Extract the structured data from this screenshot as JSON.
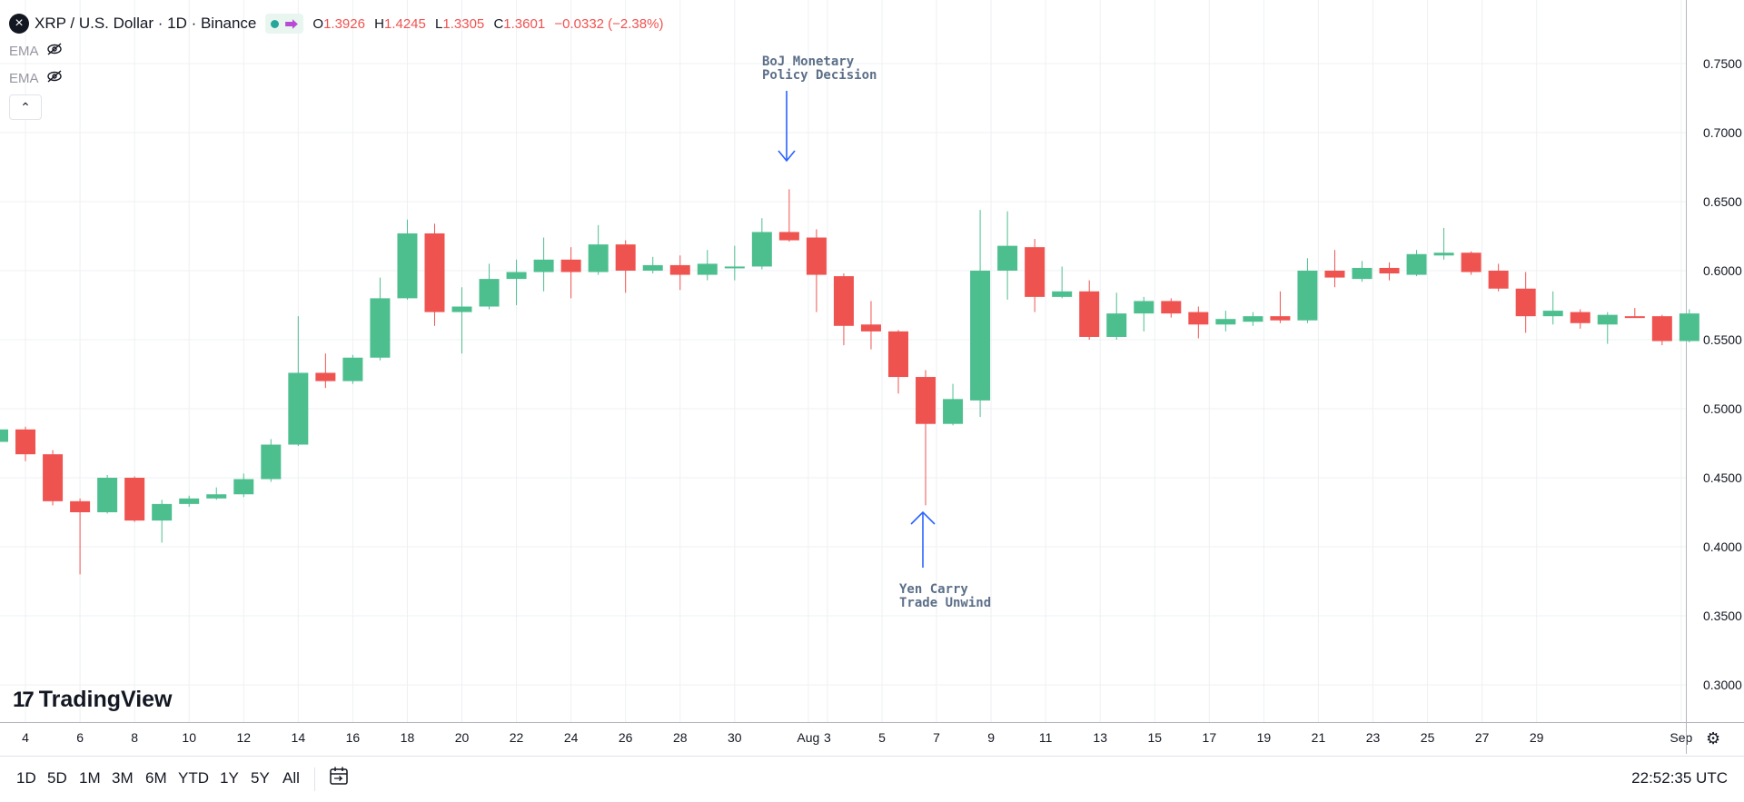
{
  "header": {
    "symbol_title": "XRP / U.S. Dollar · 1D · Binance",
    "symbol_icon": "x-close-icon",
    "ohlc": {
      "o_label": "O",
      "o_value": "1.3926",
      "h_label": "H",
      "h_value": "1.4245",
      "l_label": "L",
      "l_value": "1.3305",
      "c_label": "C",
      "c_value": "1.3601",
      "change": "−0.0332 (−2.38%)"
    },
    "indicators": [
      {
        "label": "EMA",
        "icon": "eye-off-icon"
      },
      {
        "label": "EMA",
        "icon": "eye-off-icon"
      }
    ],
    "collapse_icon": "chevron-up-icon"
  },
  "branding": {
    "name": "TradingView"
  },
  "annotations": [
    {
      "line1": "BoJ Monetary",
      "line2": "Policy Decision",
      "arrow": "down",
      "target_date": "Jul 31"
    },
    {
      "line1": "Yen Carry",
      "line2": "Trade Unwind",
      "arrow": "up",
      "target_date": "Aug 5"
    }
  ],
  "bottom_bar": {
    "ranges": [
      "1D",
      "5D",
      "1M",
      "3M",
      "6M",
      "YTD",
      "1Y",
      "5Y",
      "All"
    ],
    "time": "22:52:35 UTC"
  },
  "colors": {
    "up": "#26a69a",
    "up_fill": "#4dbf8f",
    "down": "#ef5350",
    "grid": "#eef0f3",
    "annotation": "#2962ff"
  },
  "chart_data": {
    "type": "candlestick",
    "title": "XRP / U.S. Dollar · 1D · Binance",
    "ylim": [
      0.27,
      0.77
    ],
    "y_ticks": [
      0.3,
      0.35,
      0.4,
      0.45,
      0.5,
      0.55,
      0.6,
      0.65,
      0.7,
      0.75
    ],
    "y_tick_labels": [
      "0.3000",
      "0.3500",
      "0.4000",
      "0.4500",
      "0.5000",
      "0.5500",
      "0.6000",
      "0.6500",
      "0.7000",
      "0.7500"
    ],
    "x_tick_labels": [
      "4",
      "6",
      "8",
      "10",
      "12",
      "14",
      "16",
      "18",
      "20",
      "22",
      "24",
      "26",
      "28",
      "30",
      "Aug",
      "3",
      "5",
      "7",
      "9",
      "11",
      "13",
      "15",
      "17",
      "19",
      "21",
      "23",
      "25",
      "27",
      "29",
      "Sep"
    ],
    "grid": true,
    "candles": [
      {
        "date": "Jul 3",
        "open": 0.476,
        "high": 0.486,
        "low": 0.474,
        "close": 0.485
      },
      {
        "date": "Jul 4",
        "open": 0.485,
        "high": 0.487,
        "low": 0.462,
        "close": 0.467
      },
      {
        "date": "Jul 5",
        "open": 0.467,
        "high": 0.47,
        "low": 0.43,
        "close": 0.433
      },
      {
        "date": "Jul 6",
        "open": 0.433,
        "high": 0.435,
        "low": 0.38,
        "close": 0.425
      },
      {
        "date": "Jul 7",
        "open": 0.425,
        "high": 0.452,
        "low": 0.424,
        "close": 0.45
      },
      {
        "date": "Jul 8",
        "open": 0.45,
        "high": 0.451,
        "low": 0.418,
        "close": 0.419
      },
      {
        "date": "Jul 9",
        "open": 0.419,
        "high": 0.434,
        "low": 0.403,
        "close": 0.431
      },
      {
        "date": "Jul 10",
        "open": 0.431,
        "high": 0.437,
        "low": 0.429,
        "close": 0.435
      },
      {
        "date": "Jul 11",
        "open": 0.435,
        "high": 0.443,
        "low": 0.434,
        "close": 0.438
      },
      {
        "date": "Jul 12",
        "open": 0.438,
        "high": 0.453,
        "low": 0.436,
        "close": 0.449
      },
      {
        "date": "Jul 13",
        "open": 0.449,
        "high": 0.478,
        "low": 0.447,
        "close": 0.474
      },
      {
        "date": "Jul 14",
        "open": 0.474,
        "high": 0.567,
        "low": 0.473,
        "close": 0.526
      },
      {
        "date": "Jul 15",
        "open": 0.526,
        "high": 0.54,
        "low": 0.515,
        "close": 0.52
      },
      {
        "date": "Jul 16",
        "open": 0.52,
        "high": 0.539,
        "low": 0.518,
        "close": 0.537
      },
      {
        "date": "Jul 17",
        "open": 0.537,
        "high": 0.595,
        "low": 0.535,
        "close": 0.58
      },
      {
        "date": "Jul 18",
        "open": 0.58,
        "high": 0.637,
        "low": 0.579,
        "close": 0.627
      },
      {
        "date": "Jul 19",
        "open": 0.627,
        "high": 0.634,
        "low": 0.56,
        "close": 0.57
      },
      {
        "date": "Jul 20",
        "open": 0.57,
        "high": 0.588,
        "low": 0.54,
        "close": 0.574
      },
      {
        "date": "Jul 21",
        "open": 0.574,
        "high": 0.605,
        "low": 0.572,
        "close": 0.594
      },
      {
        "date": "Jul 22",
        "open": 0.594,
        "high": 0.608,
        "low": 0.575,
        "close": 0.599
      },
      {
        "date": "Jul 23",
        "open": 0.599,
        "high": 0.624,
        "low": 0.585,
        "close": 0.608
      },
      {
        "date": "Jul 24",
        "open": 0.608,
        "high": 0.617,
        "low": 0.58,
        "close": 0.599
      },
      {
        "date": "Jul 25",
        "open": 0.599,
        "high": 0.633,
        "low": 0.597,
        "close": 0.619
      },
      {
        "date": "Jul 26",
        "open": 0.619,
        "high": 0.622,
        "low": 0.584,
        "close": 0.6
      },
      {
        "date": "Jul 27",
        "open": 0.6,
        "high": 0.61,
        "low": 0.598,
        "close": 0.604
      },
      {
        "date": "Jul 28",
        "open": 0.604,
        "high": 0.611,
        "low": 0.586,
        "close": 0.597
      },
      {
        "date": "Jul 29",
        "open": 0.597,
        "high": 0.615,
        "low": 0.593,
        "close": 0.605
      },
      {
        "date": "Jul 30",
        "open": 0.602,
        "high": 0.618,
        "low": 0.593,
        "close": 0.603
      },
      {
        "date": "Jul 31",
        "open": 0.603,
        "high": 0.638,
        "low": 0.601,
        "close": 0.628
      },
      {
        "date": "Aug 1",
        "open": 0.628,
        "high": 0.659,
        "low": 0.621,
        "close": 0.622
      },
      {
        "date": "Aug 2",
        "open": 0.624,
        "high": 0.63,
        "low": 0.57,
        "close": 0.597
      },
      {
        "date": "Aug 3",
        "open": 0.596,
        "high": 0.598,
        "low": 0.546,
        "close": 0.56
      },
      {
        "date": "Aug 4",
        "open": 0.561,
        "high": 0.578,
        "low": 0.543,
        "close": 0.556
      },
      {
        "date": "Aug 5",
        "open": 0.556,
        "high": 0.557,
        "low": 0.511,
        "close": 0.523
      },
      {
        "date": "Aug 6",
        "open": 0.523,
        "high": 0.528,
        "low": 0.43,
        "close": 0.489
      },
      {
        "date": "Aug 7",
        "open": 0.489,
        "high": 0.518,
        "low": 0.488,
        "close": 0.507
      },
      {
        "date": "Aug 8",
        "open": 0.506,
        "high": 0.644,
        "low": 0.494,
        "close": 0.6
      },
      {
        "date": "Aug 9",
        "open": 0.6,
        "high": 0.643,
        "low": 0.579,
        "close": 0.618
      },
      {
        "date": "Aug 10",
        "open": 0.617,
        "high": 0.623,
        "low": 0.57,
        "close": 0.581
      },
      {
        "date": "Aug 11",
        "open": 0.581,
        "high": 0.603,
        "low": 0.58,
        "close": 0.585
      },
      {
        "date": "Aug 12",
        "open": 0.585,
        "high": 0.593,
        "low": 0.55,
        "close": 0.552
      },
      {
        "date": "Aug 13",
        "open": 0.552,
        "high": 0.584,
        "low": 0.55,
        "close": 0.569
      },
      {
        "date": "Aug 14",
        "open": 0.569,
        "high": 0.581,
        "low": 0.556,
        "close": 0.578
      },
      {
        "date": "Aug 15",
        "open": 0.578,
        "high": 0.58,
        "low": 0.566,
        "close": 0.569
      },
      {
        "date": "Aug 16",
        "open": 0.57,
        "high": 0.574,
        "low": 0.551,
        "close": 0.561
      },
      {
        "date": "Aug 17",
        "open": 0.561,
        "high": 0.571,
        "low": 0.556,
        "close": 0.565
      },
      {
        "date": "Aug 18",
        "open": 0.563,
        "high": 0.57,
        "low": 0.56,
        "close": 0.567
      },
      {
        "date": "Aug 19",
        "open": 0.567,
        "high": 0.585,
        "low": 0.562,
        "close": 0.564
      },
      {
        "date": "Aug 20",
        "open": 0.564,
        "high": 0.609,
        "low": 0.562,
        "close": 0.6
      },
      {
        "date": "Aug 21",
        "open": 0.6,
        "high": 0.615,
        "low": 0.588,
        "close": 0.595
      },
      {
        "date": "Aug 22",
        "open": 0.594,
        "high": 0.607,
        "low": 0.592,
        "close": 0.602
      },
      {
        "date": "Aug 23",
        "open": 0.602,
        "high": 0.606,
        "low": 0.593,
        "close": 0.598
      },
      {
        "date": "Aug 24",
        "open": 0.597,
        "high": 0.615,
        "low": 0.596,
        "close": 0.612
      },
      {
        "date": "Aug 25",
        "open": 0.611,
        "high": 0.631,
        "low": 0.608,
        "close": 0.613
      },
      {
        "date": "Aug 26",
        "open": 0.613,
        "high": 0.614,
        "low": 0.597,
        "close": 0.599
      },
      {
        "date": "Aug 27",
        "open": 0.6,
        "high": 0.605,
        "low": 0.585,
        "close": 0.587
      },
      {
        "date": "Aug 28",
        "open": 0.587,
        "high": 0.599,
        "low": 0.555,
        "close": 0.567
      },
      {
        "date": "Aug 29",
        "open": 0.567,
        "high": 0.585,
        "low": 0.561,
        "close": 0.571
      },
      {
        "date": "Aug 30",
        "open": 0.57,
        "high": 0.572,
        "low": 0.558,
        "close": 0.562
      },
      {
        "date": "Aug 31",
        "open": 0.561,
        "high": 0.57,
        "low": 0.547,
        "close": 0.568
      },
      {
        "date": "Sep 1",
        "open": 0.567,
        "high": 0.573,
        "low": 0.566,
        "close": 0.566
      },
      {
        "date": "Sep 2",
        "open": 0.567,
        "high": 0.568,
        "low": 0.546,
        "close": 0.549
      },
      {
        "date": "Sep 3",
        "open": 0.549,
        "high": 0.572,
        "low": 0.548,
        "close": 0.569
      }
    ]
  }
}
